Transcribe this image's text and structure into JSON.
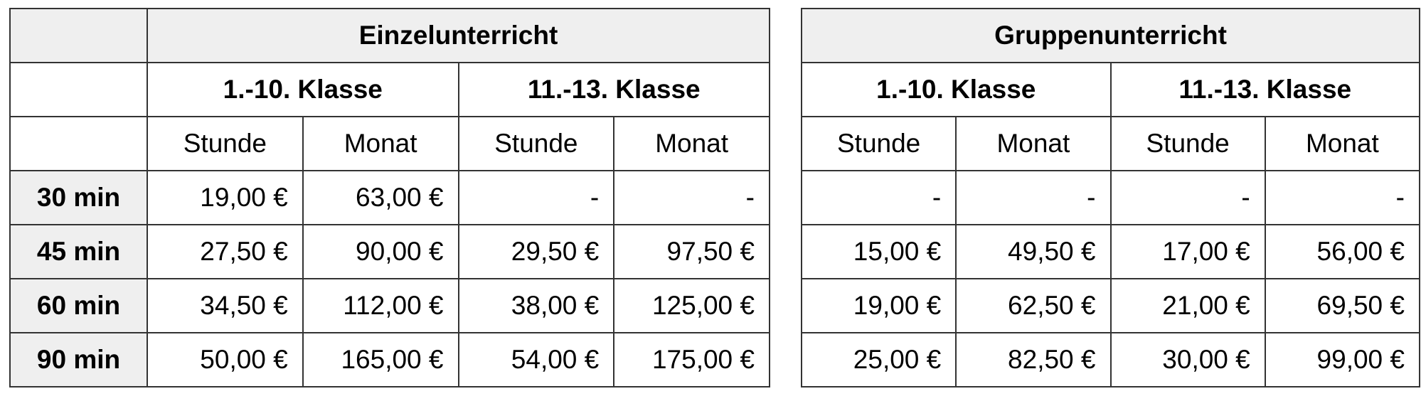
{
  "einzel": {
    "title": "Einzelunterricht",
    "groups": [
      "1.-10. Klasse",
      "11.-13. Klasse"
    ],
    "subheaders": [
      "Stunde",
      "Monat",
      "Stunde",
      "Monat"
    ],
    "rows": [
      {
        "label": "30 min",
        "values": [
          "19,00 €",
          "63,00 €",
          "-",
          "-"
        ]
      },
      {
        "label": "45 min",
        "values": [
          "27,50 €",
          "90,00 €",
          "29,50 €",
          "97,50 €"
        ]
      },
      {
        "label": "60 min",
        "values": [
          "34,50 €",
          "112,00 €",
          "38,00 €",
          "125,00 €"
        ]
      },
      {
        "label": "90 min",
        "values": [
          "50,00 €",
          "165,00 €",
          "54,00 €",
          "175,00 €"
        ]
      }
    ]
  },
  "gruppe": {
    "title": "Gruppenunterricht",
    "groups": [
      "1.-10. Klasse",
      "11.-13. Klasse"
    ],
    "subheaders": [
      "Stunde",
      "Monat",
      "Stunde",
      "Monat"
    ],
    "rows": [
      {
        "values": [
          "-",
          "-",
          "-",
          "-"
        ]
      },
      {
        "values": [
          "15,00 €",
          "49,50 €",
          "17,00 €",
          "56,00 €"
        ]
      },
      {
        "values": [
          "19,00 €",
          "62,50 €",
          "21,00 €",
          "69,50 €"
        ]
      },
      {
        "values": [
          "25,00 €",
          "82,50 €",
          "30,00 €",
          "99,00 €"
        ]
      }
    ]
  }
}
